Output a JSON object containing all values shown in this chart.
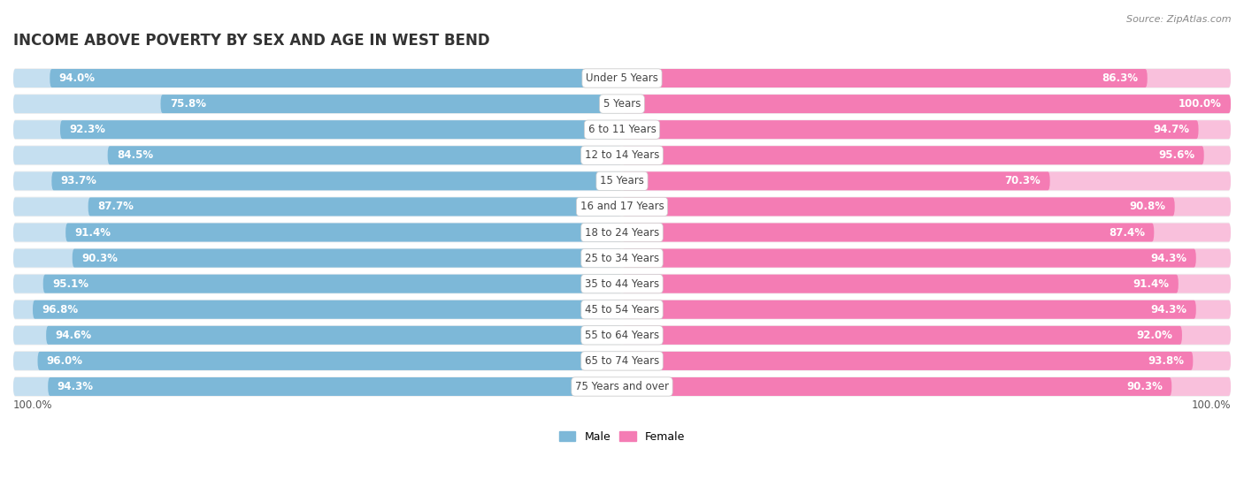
{
  "title": "INCOME ABOVE POVERTY BY SEX AND AGE IN WEST BEND",
  "source": "Source: ZipAtlas.com",
  "categories": [
    "Under 5 Years",
    "5 Years",
    "6 to 11 Years",
    "12 to 14 Years",
    "15 Years",
    "16 and 17 Years",
    "18 to 24 Years",
    "25 to 34 Years",
    "35 to 44 Years",
    "45 to 54 Years",
    "55 to 64 Years",
    "65 to 74 Years",
    "75 Years and over"
  ],
  "male_values": [
    94.0,
    75.8,
    92.3,
    84.5,
    93.7,
    87.7,
    91.4,
    90.3,
    95.1,
    96.8,
    94.6,
    96.0,
    94.3
  ],
  "female_values": [
    86.3,
    100.0,
    94.7,
    95.6,
    70.3,
    90.8,
    87.4,
    94.3,
    91.4,
    94.3,
    92.0,
    93.8,
    90.3
  ],
  "male_color": "#7db8d8",
  "female_color": "#f47cb4",
  "male_color_light": "#c5dff0",
  "female_color_light": "#f9c0dc",
  "bg_color": "#ffffff",
  "row_bg_color": "#f0f0f0",
  "title_fontsize": 12,
  "label_fontsize": 8.5,
  "value_fontsize": 8.5,
  "legend_fontsize": 9,
  "source_fontsize": 8
}
